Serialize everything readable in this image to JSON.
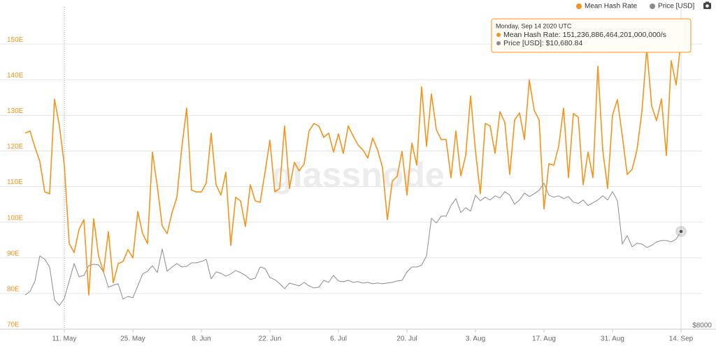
{
  "chart_data": {
    "type": "line",
    "watermark": "glassnode",
    "categories": [
      null,
      null,
      null,
      null,
      null,
      null,
      null,
      null,
      "11. May",
      null,
      null,
      null,
      null,
      null,
      null,
      null,
      null,
      null,
      null,
      null,
      null,
      null,
      "25. May",
      null,
      null,
      null,
      null,
      null,
      null,
      null,
      null,
      null,
      null,
      null,
      null,
      null,
      "8. Jun",
      null,
      null,
      null,
      null,
      null,
      null,
      null,
      null,
      null,
      null,
      null,
      null,
      null,
      "22. Jun",
      null,
      null,
      null,
      null,
      null,
      null,
      null,
      null,
      null,
      null,
      null,
      null,
      null,
      "6. Jul",
      null,
      null,
      null,
      null,
      null,
      null,
      null,
      null,
      null,
      null,
      null,
      null,
      null,
      "20. Jul",
      null,
      null,
      null,
      null,
      null,
      null,
      null,
      null,
      null,
      null,
      null,
      null,
      null,
      "3. Aug",
      null,
      null,
      null,
      null,
      null,
      null,
      null,
      null,
      null,
      null,
      null,
      null,
      null,
      "17. Aug",
      null,
      null,
      null,
      null,
      null,
      null,
      null,
      null,
      null,
      null,
      null,
      null,
      null,
      "31. Aug",
      null,
      null,
      null,
      null,
      null,
      null,
      null,
      null,
      null,
      null,
      null,
      null,
      null,
      "14. Sep"
    ],
    "series": [
      {
        "name": "Mean Hash Rate",
        "color": "#f7931a",
        "values": [
          125,
          125.6,
          121,
          117,
          108.5,
          108,
          134.5,
          127,
          116,
          94,
          91.5,
          98,
          100.7,
          79.6,
          101,
          90.5,
          86,
          97.4,
          83,
          88.4,
          89,
          92.3,
          90,
          103,
          96.8,
          94,
          119.7,
          110,
          99,
          96.8,
          102.7,
          107,
          121,
          132,
          109,
          108.5,
          108.5,
          111,
          125,
          110.5,
          107.6,
          114,
          93.5,
          107,
          106,
          98.8,
          110.5,
          106,
          105.6,
          114,
          123,
          108.5,
          109.5,
          127,
          109.5,
          116.8,
          114.4,
          116.4,
          125.6,
          127.7,
          127,
          123.8,
          125,
          119.7,
          124.8,
          119.3,
          127,
          124.2,
          121.7,
          120.3,
          118,
          123.6,
          120.3,
          115.4,
          100.7,
          111.5,
          112.9,
          119.9,
          107.6,
          122.2,
          116,
          138,
          121.3,
          136,
          126,
          123.2,
          123.2,
          112.5,
          125.6,
          113,
          118.7,
          135.4,
          120,
          108,
          127.7,
          127,
          119.3,
          131,
          128,
          113.4,
          128.7,
          130.7,
          123.2,
          139.9,
          131.4,
          128.7,
          103.7,
          116.4,
          116,
          121.3,
          132,
          112.5,
          130.5,
          129.5,
          110.5,
          119.7,
          112.5,
          143.8,
          120.3,
          109.5,
          130,
          134.4,
          124.2,
          113.4,
          114.8,
          120.3,
          131,
          148.7,
          132.6,
          128.5,
          134.6,
          118.7,
          145.3,
          138.5,
          151.24
        ]
      },
      {
        "name": "Price [USD]",
        "color": "#8c8c8c",
        "axis": "y2",
        "values": [
          8938,
          9034,
          9321,
          10011,
          9915,
          9704,
          8804,
          8651,
          8843,
          9321,
          9800,
          9436,
          9474,
          9743,
          9781,
          9762,
          9570,
          9149,
          9206,
          9245,
          8823,
          8900,
          8862,
          9187,
          9513,
          9589,
          9743,
          9551,
          10202,
          9589,
          9704,
          9800,
          9704,
          9724,
          9819,
          9819,
          9858,
          9915,
          9379,
          9570,
          9532,
          9455,
          9513,
          9609,
          9551,
          9474,
          9360,
          9398,
          9704,
          9666,
          9417,
          9360,
          9245,
          9111,
          9264,
          9226,
          9187,
          9283,
          9187,
          9130,
          9149,
          9340,
          9283,
          9474,
          9321,
          9302,
          9340,
          9283,
          9302,
          9264,
          9283,
          9245,
          9264,
          9245,
          9264,
          9283,
          9321,
          9340,
          9570,
          9704,
          9704,
          9762,
          10011,
          11045,
          10911,
          11102,
          11102,
          11390,
          11581,
          11198,
          11332,
          11236,
          11677,
          11524,
          11620,
          11543,
          11658,
          11600,
          11773,
          11677,
          11428,
          11543,
          11735,
          11639,
          11715,
          11811,
          12002,
          11677,
          11620,
          11658,
          11581,
          11639,
          11485,
          11447,
          11543,
          11390,
          11466,
          11543,
          11658,
          11543,
          11773,
          11524,
          10336,
          10566,
          10260,
          10355,
          10336,
          10241,
          10298,
          10394,
          10432,
          10432,
          10394,
          10470,
          10680.84
        ]
      }
    ],
    "ylim": [
      70,
      160
    ],
    "yticks": [
      {
        "value": 70,
        "label": "70E"
      },
      {
        "value": 80,
        "label": "80E"
      },
      {
        "value": 90,
        "label": "90E"
      },
      {
        "value": 100,
        "label": "100E"
      },
      {
        "value": 110,
        "label": "110E"
      },
      {
        "value": 120,
        "label": "120E"
      },
      {
        "value": 130,
        "label": "130E"
      },
      {
        "value": 140,
        "label": "140E"
      },
      {
        "value": 150,
        "label": "150E"
      }
    ],
    "y2lim": [
      8000,
      16800
    ],
    "y2ticks": [
      {
        "value": 8000,
        "label": "$8000"
      }
    ],
    "grid": true,
    "legend": "top-right",
    "tooltip": {
      "title": "Monday, Sep 14 2020 UTC",
      "lines": [
        "Mean Hash Rate: 151,236,886,464,201,000,000/s",
        "Price [USD]: $10,680.84"
      ]
    }
  }
}
